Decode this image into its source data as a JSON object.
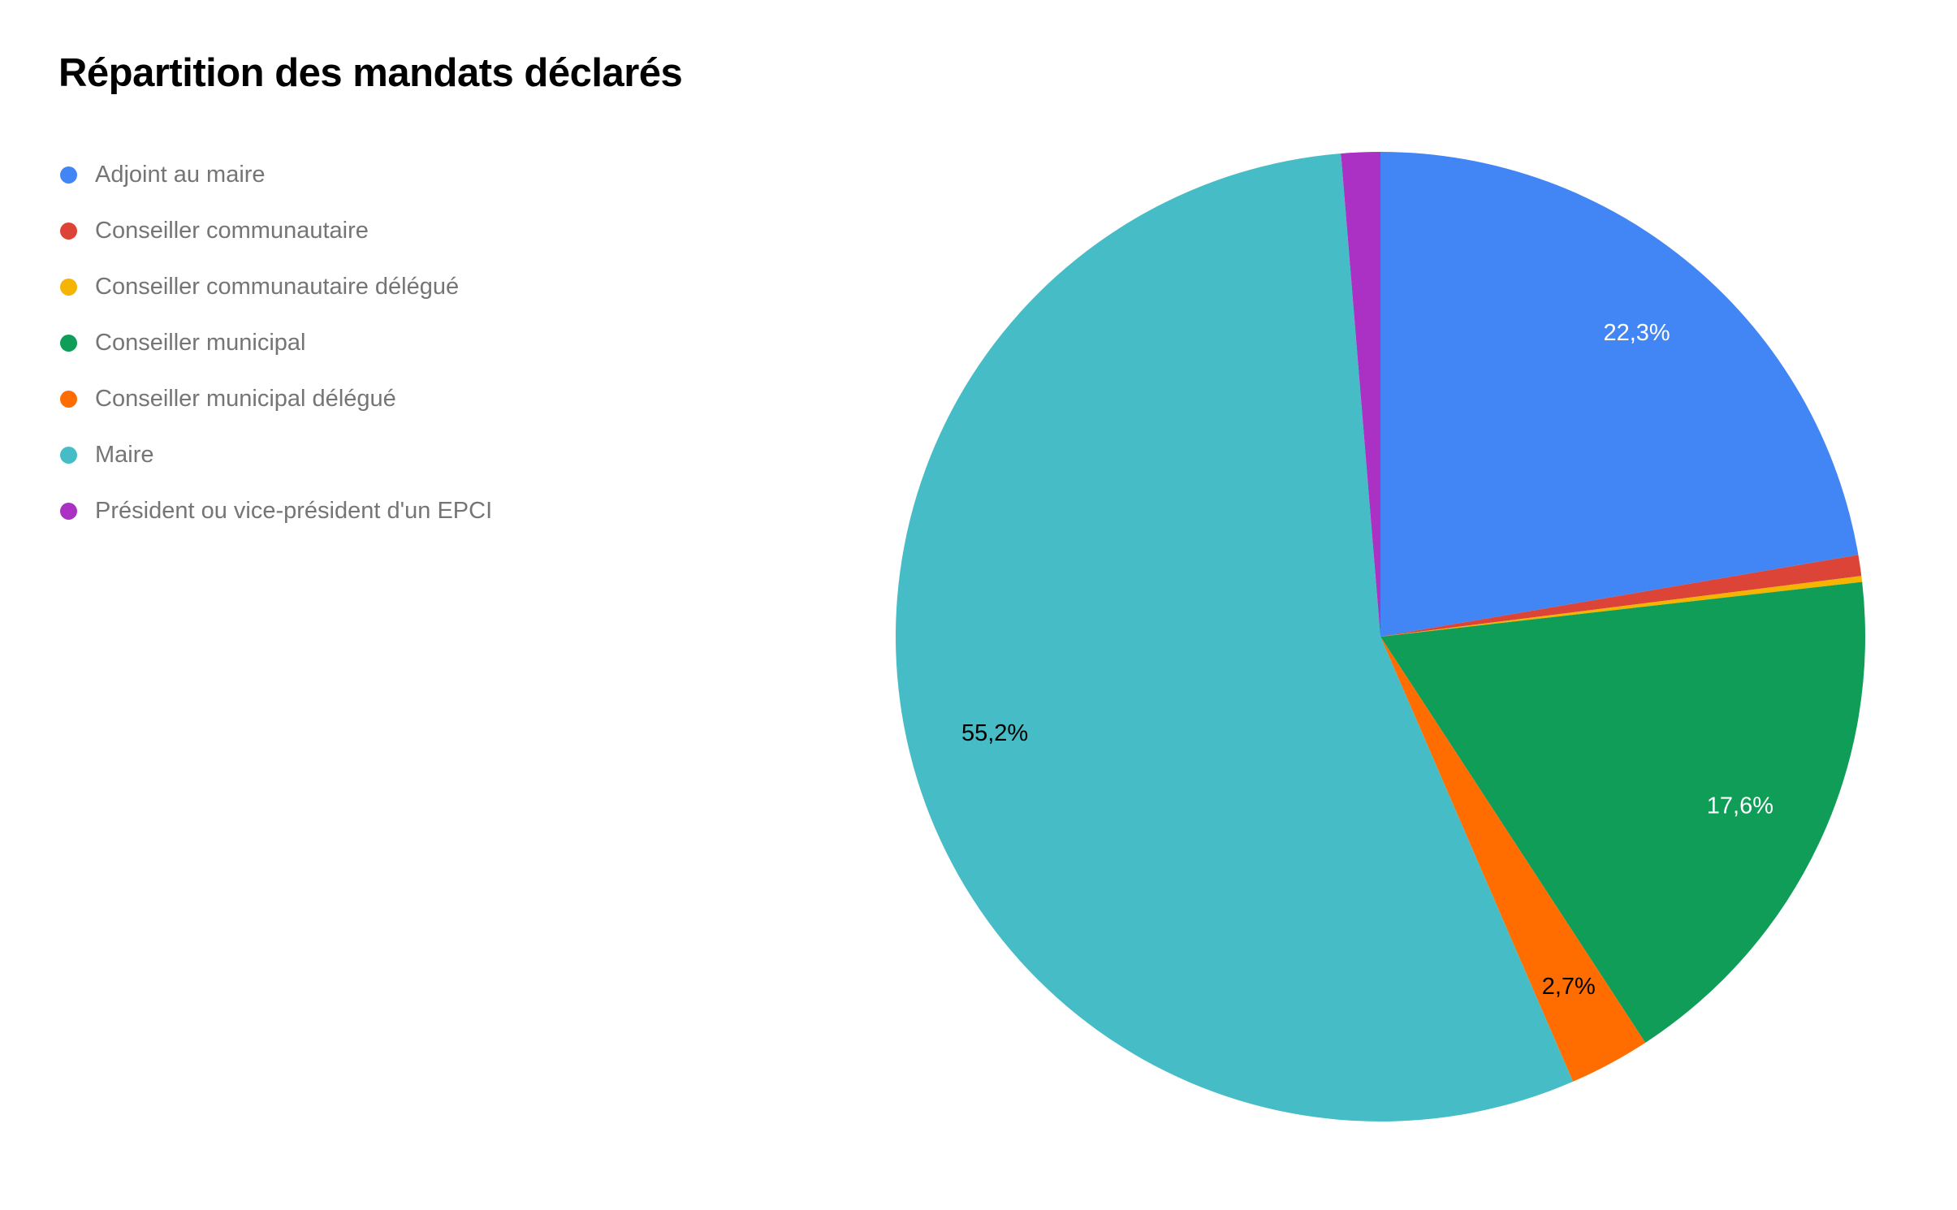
{
  "header": {
    "title": "Répartition des mandats déclarés"
  },
  "chart_data": {
    "type": "pie",
    "title": "Répartition des mandats déclarés",
    "legend_position": "left",
    "start_angle_deg": 0,
    "direction": "clockwise",
    "value_format": "percent_french_comma",
    "categories": [
      "Adjoint au maire",
      "Conseiller communautaire",
      "Conseiller communautaire délégué",
      "Conseiller municipal",
      "Conseiller municipal délégué",
      "Maire",
      "Président ou vice-président d'un EPCI"
    ],
    "values": [
      22.3,
      0.7,
      0.2,
      17.6,
      2.7,
      55.2,
      1.3
    ],
    "slice_labels": [
      "22,3%",
      "",
      "",
      "17,6%",
      "2,7%",
      "55,2%",
      ""
    ],
    "slice_label_colors": [
      "#ffffff",
      "",
      "",
      "#ffffff",
      "#000000",
      "#000000",
      ""
    ],
    "colors": [
      "#4285f4",
      "#db4437",
      "#f4b400",
      "#0f9d58",
      "#ff6d00",
      "#46bdc6",
      "#ab30c4"
    ],
    "legend_text_color": "#757575",
    "background_color": "#ffffff"
  }
}
